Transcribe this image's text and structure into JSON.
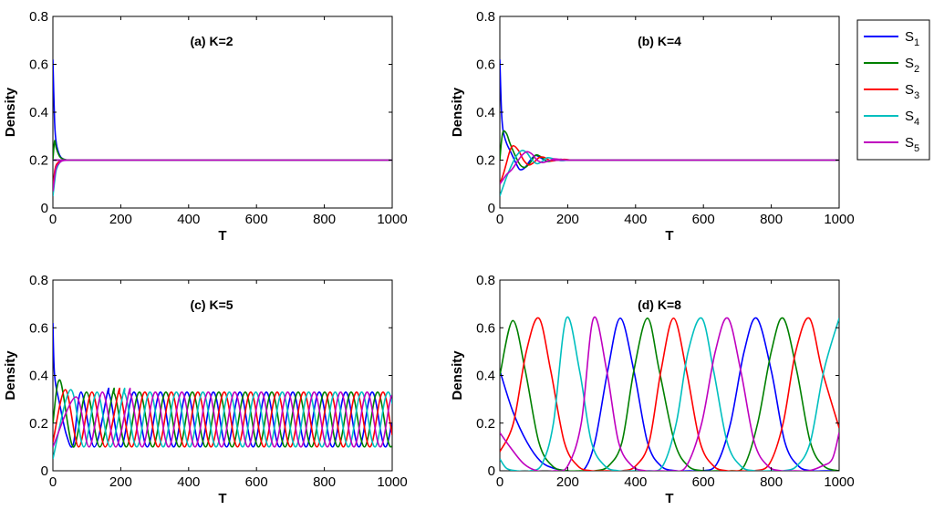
{
  "legend": {
    "position": "top-right outside",
    "items": [
      {
        "label": "S",
        "sub": "1",
        "color": "#0000ff"
      },
      {
        "label": "S",
        "sub": "2",
        "color": "#008000"
      },
      {
        "label": "S",
        "sub": "3",
        "color": "#ff0000"
      },
      {
        "label": "S",
        "sub": "4",
        "color": "#00bfbf"
      },
      {
        "label": "S",
        "sub": "5",
        "color": "#bf00bf"
      }
    ]
  },
  "chart_data": [
    {
      "type": "line",
      "title": "(a) K=2",
      "xlabel": "T",
      "ylabel": "Density",
      "xlim": [
        0,
        1000
      ],
      "ylim": [
        0,
        0.8
      ],
      "xticks": [
        "0",
        "200",
        "400",
        "600",
        "800",
        "1000"
      ],
      "yticks": [
        "0",
        "0.2",
        "0.4",
        "0.6",
        "0.8"
      ],
      "grid": false,
      "series": [
        {
          "name": "S1",
          "x": [
            0,
            5,
            10,
            20,
            30,
            45,
            60,
            1000
          ],
          "values": [
            0.62,
            0.36,
            0.27,
            0.22,
            0.205,
            0.2,
            0.2,
            0.2
          ]
        },
        {
          "name": "S2",
          "x": [
            0,
            5,
            10,
            20,
            30,
            45,
            60,
            1000
          ],
          "values": [
            0.2,
            0.28,
            0.25,
            0.215,
            0.205,
            0.2,
            0.2,
            0.2
          ]
        },
        {
          "name": "S3",
          "x": [
            0,
            5,
            10,
            20,
            30,
            45,
            60,
            1000
          ],
          "values": [
            0.08,
            0.15,
            0.18,
            0.195,
            0.2,
            0.2,
            0.2,
            0.2
          ]
        },
        {
          "name": "S4",
          "x": [
            0,
            5,
            10,
            20,
            30,
            45,
            60,
            1000
          ],
          "values": [
            0.05,
            0.11,
            0.16,
            0.19,
            0.198,
            0.2,
            0.2,
            0.2
          ]
        },
        {
          "name": "S5",
          "x": [
            0,
            5,
            10,
            20,
            30,
            45,
            60,
            1000
          ],
          "values": [
            0.07,
            0.13,
            0.17,
            0.19,
            0.198,
            0.2,
            0.2,
            0.2
          ]
        }
      ]
    },
    {
      "type": "line",
      "title": "(b) K=4",
      "xlabel": "T",
      "ylabel": "Density",
      "xlim": [
        0,
        1000
      ],
      "ylim": [
        0,
        0.8
      ],
      "xticks": [
        "0",
        "200",
        "400",
        "600",
        "800",
        "1000"
      ],
      "yticks": [
        "0",
        "0.2",
        "0.4",
        "0.6",
        "0.8"
      ],
      "grid": false,
      "series": [
        {
          "name": "S1",
          "x": [
            0,
            5,
            10,
            20,
            30,
            40,
            50,
            60,
            75,
            90,
            105,
            120,
            140,
            160,
            180,
            200,
            220,
            1000
          ],
          "values": [
            0.62,
            0.4,
            0.32,
            0.27,
            0.24,
            0.21,
            0.18,
            0.16,
            0.17,
            0.2,
            0.22,
            0.21,
            0.195,
            0.2,
            0.203,
            0.2,
            0.2,
            0.2
          ]
        },
        {
          "name": "S2",
          "x": [
            0,
            5,
            10,
            20,
            30,
            45,
            60,
            75,
            90,
            105,
            120,
            140,
            160,
            180,
            200,
            220,
            1000
          ],
          "values": [
            0.2,
            0.28,
            0.32,
            0.31,
            0.27,
            0.22,
            0.18,
            0.17,
            0.19,
            0.22,
            0.215,
            0.195,
            0.2,
            0.203,
            0.2,
            0.2,
            0.2
          ]
        },
        {
          "name": "S3",
          "x": [
            0,
            10,
            20,
            30,
            40,
            55,
            70,
            85,
            100,
            115,
            130,
            150,
            170,
            190,
            210,
            220,
            1000
          ],
          "values": [
            0.1,
            0.14,
            0.19,
            0.24,
            0.26,
            0.24,
            0.2,
            0.18,
            0.19,
            0.21,
            0.212,
            0.197,
            0.2,
            0.203,
            0.2,
            0.2,
            0.2
          ]
        },
        {
          "name": "S4",
          "x": [
            0,
            10,
            20,
            35,
            50,
            65,
            80,
            95,
            110,
            125,
            140,
            160,
            180,
            200,
            220,
            1000
          ],
          "values": [
            0.05,
            0.09,
            0.13,
            0.18,
            0.22,
            0.24,
            0.23,
            0.2,
            0.185,
            0.195,
            0.21,
            0.205,
            0.198,
            0.2,
            0.2,
            0.2
          ]
        },
        {
          "name": "S5",
          "x": [
            0,
            10,
            20,
            35,
            50,
            65,
            80,
            95,
            110,
            125,
            140,
            160,
            180,
            200,
            220,
            1000
          ],
          "values": [
            0.1,
            0.12,
            0.14,
            0.16,
            0.19,
            0.22,
            0.235,
            0.225,
            0.2,
            0.19,
            0.195,
            0.205,
            0.202,
            0.2,
            0.2,
            0.2
          ]
        }
      ]
    },
    {
      "type": "line",
      "title": "(c) K=5",
      "xlabel": "T",
      "ylabel": "Density",
      "xlim": [
        0,
        1000
      ],
      "ylim": [
        0,
        0.8
      ],
      "xticks": [
        "0",
        "200",
        "400",
        "600",
        "800",
        "1000"
      ],
      "yticks": [
        "0",
        "0.2",
        "0.4",
        "0.6",
        "0.8"
      ],
      "grid": false,
      "oscillation": {
        "kind": "sustained",
        "period": 78,
        "min": 0.1,
        "max": 0.33,
        "phase_step": 15.6,
        "peaks_T_S1": [
          5,
          83,
          161,
          239,
          317,
          395,
          473,
          551,
          629,
          707,
          785,
          863,
          941
        ]
      },
      "series": [
        {
          "name": "S1",
          "x": [
            0,
            5,
            20,
            40,
            60,
            83,
            122,
            161,
            1000
          ],
          "values": [
            0.62,
            0.4,
            0.28,
            0.15,
            0.11,
            0.33,
            0.1,
            0.33,
            0.22
          ]
        },
        {
          "name": "S2",
          "x": [
            0,
            21,
            60,
            99,
            138,
            177,
            1000
          ],
          "values": [
            0.2,
            0.38,
            0.1,
            0.33,
            0.1,
            0.33,
            0.22
          ]
        },
        {
          "name": "S3",
          "x": [
            0,
            37,
            76,
            115,
            154,
            193,
            1000
          ],
          "values": [
            0.12,
            0.34,
            0.1,
            0.33,
            0.1,
            0.33,
            0.22
          ]
        },
        {
          "name": "S4",
          "x": [
            0,
            52,
            91,
            130,
            169,
            208,
            1000
          ],
          "values": [
            0.05,
            0.34,
            0.1,
            0.33,
            0.1,
            0.33,
            0.22
          ]
        },
        {
          "name": "S5",
          "x": [
            0,
            68,
            107,
            146,
            185,
            224,
            1000
          ],
          "values": [
            0.1,
            0.31,
            0.1,
            0.33,
            0.1,
            0.33,
            0.22
          ]
        }
      ]
    },
    {
      "type": "line",
      "title": "(d) K=8",
      "xlabel": "T",
      "ylabel": "Density",
      "xlim": [
        0,
        1000
      ],
      "ylim": [
        0,
        0.8
      ],
      "xticks": [
        "0",
        "200",
        "400",
        "600",
        "800",
        "1000"
      ],
      "yticks": [
        "0",
        "0.2",
        "0.4",
        "0.6",
        "0.8"
      ],
      "grid": false,
      "oscillation": {
        "kind": "sustained",
        "period": 400,
        "min": 0.0,
        "max": 0.64
      },
      "series": [
        {
          "name": "S1",
          "x": [
            0,
            38,
            80,
            120,
            160,
            200,
            245,
            280,
            318,
            355,
            395,
            435,
            475,
            520,
            560,
            600,
            640,
            680,
            720,
            757,
            800,
            840,
            880,
            920,
            960,
            1000
          ],
          "values": [
            0.42,
            0.25,
            0.12,
            0.04,
            0.01,
            0.0,
            0.0,
            0.12,
            0.42,
            0.64,
            0.42,
            0.12,
            0.02,
            0.0,
            0.0,
            0.0,
            0.03,
            0.2,
            0.5,
            0.64,
            0.42,
            0.12,
            0.02,
            0.0,
            0.0,
            0.0
          ]
        },
        {
          "name": "S2",
          "x": [
            0,
            38,
            75,
            115,
            155,
            200,
            240,
            280,
            320,
            360,
            395,
            435,
            470,
            515,
            555,
            600,
            640,
            680,
            720,
            760,
            800,
            835,
            875,
            915,
            955,
            1000
          ],
          "values": [
            0.4,
            0.63,
            0.42,
            0.12,
            0.02,
            0.0,
            0.0,
            0.0,
            0.02,
            0.12,
            0.42,
            0.64,
            0.42,
            0.12,
            0.02,
            0.0,
            0.0,
            0.0,
            0.02,
            0.2,
            0.5,
            0.64,
            0.42,
            0.12,
            0.02,
            0.0
          ]
        },
        {
          "name": "S3",
          "x": [
            0,
            40,
            78,
            115,
            150,
            190,
            230,
            270,
            315,
            360,
            400,
            440,
            475,
            512,
            550,
            590,
            630,
            670,
            710,
            750,
            795,
            835,
            872,
            912,
            950,
            1000
          ],
          "values": [
            0.08,
            0.2,
            0.5,
            0.64,
            0.42,
            0.12,
            0.02,
            0.0,
            0.0,
            0.0,
            0.02,
            0.12,
            0.42,
            0.64,
            0.42,
            0.12,
            0.02,
            0.0,
            0.0,
            0.0,
            0.03,
            0.2,
            0.5,
            0.64,
            0.42,
            0.18
          ]
        },
        {
          "name": "S4",
          "x": [
            0,
            20,
            50,
            90,
            125,
            158,
            196,
            235,
            270,
            310,
            350,
            395,
            435,
            480,
            520,
            555,
            595,
            630,
            670,
            710,
            750,
            795,
            835,
            875,
            915,
            955,
            1000
          ],
          "values": [
            0.05,
            0.01,
            0.0,
            0.0,
            0.03,
            0.2,
            0.64,
            0.42,
            0.12,
            0.02,
            0.0,
            0.0,
            0.0,
            0.02,
            0.2,
            0.5,
            0.64,
            0.42,
            0.12,
            0.02,
            0.0,
            0.0,
            0.0,
            0.02,
            0.12,
            0.42,
            0.64
          ]
        },
        {
          "name": "S5",
          "x": [
            0,
            30,
            70,
            110,
            160,
            200,
            240,
            276,
            315,
            350,
            390,
            430,
            470,
            510,
            550,
            595,
            635,
            672,
            710,
            750,
            790,
            830,
            870,
            910,
            950,
            980,
            1000
          ],
          "values": [
            0.16,
            0.1,
            0.03,
            0.0,
            0.0,
            0.02,
            0.2,
            0.64,
            0.42,
            0.12,
            0.02,
            0.0,
            0.0,
            0.0,
            0.02,
            0.2,
            0.5,
            0.64,
            0.42,
            0.12,
            0.02,
            0.0,
            0.0,
            0.0,
            0.02,
            0.05,
            0.16
          ]
        }
      ]
    }
  ]
}
